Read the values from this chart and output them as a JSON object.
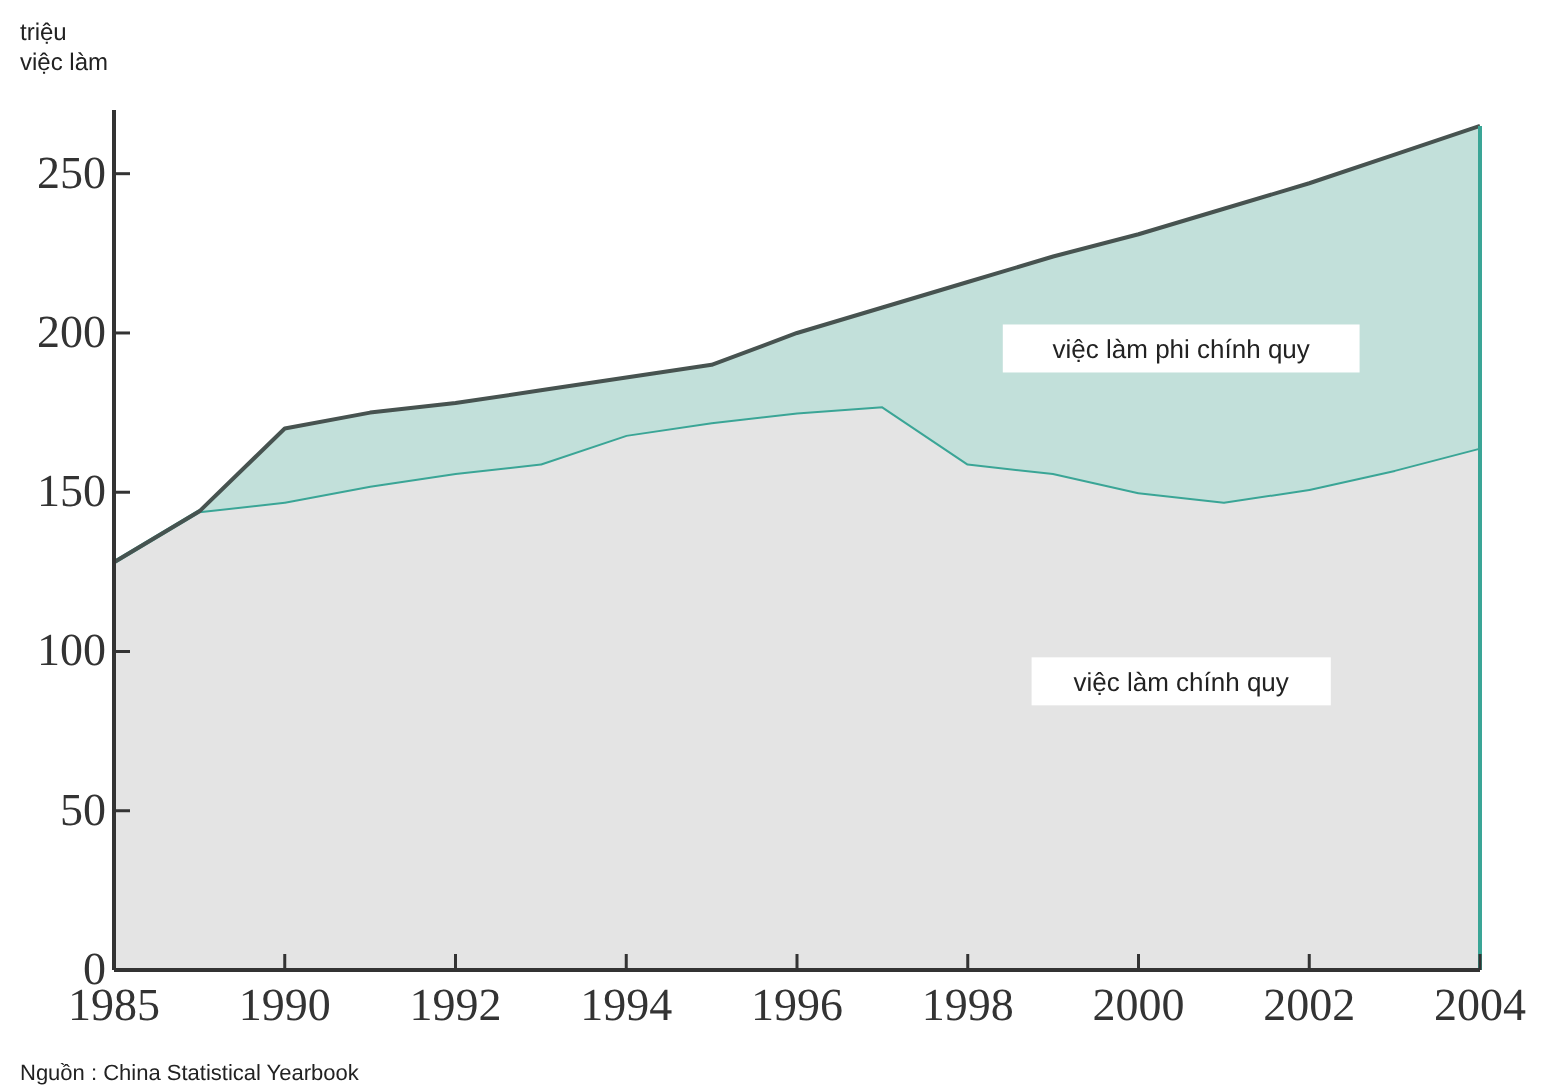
{
  "chart_data": {
    "type": "area",
    "stacked": true,
    "ylabel": "triệu việc làm",
    "categories": [
      "1985",
      null,
      "1990",
      null,
      "1992",
      null,
      "1994",
      null,
      "1996",
      null,
      "1998",
      null,
      "2000",
      null,
      "2002",
      null,
      "2004"
    ],
    "series": [
      {
        "name": "việc làm chính quy",
        "color": "#e4e4e4",
        "values": [
          128,
          144,
          147,
          152,
          156,
          159,
          168,
          172,
          175,
          177,
          159,
          156,
          150,
          147,
          151,
          157,
          164
        ]
      },
      {
        "name": "việc làm phi chính quy",
        "color": "#c2e0da",
        "values": [
          0,
          0,
          23,
          23,
          22,
          23,
          18,
          18,
          25,
          31,
          57,
          68,
          81,
          92,
          96,
          99,
          101
        ]
      }
    ],
    "ylim": [
      0,
      270
    ],
    "yticks": [
      0,
      50,
      100,
      150,
      200,
      250
    ],
    "grid": false,
    "annotations": [
      "Nguồn : China Statistical Yearbook"
    ]
  }
}
